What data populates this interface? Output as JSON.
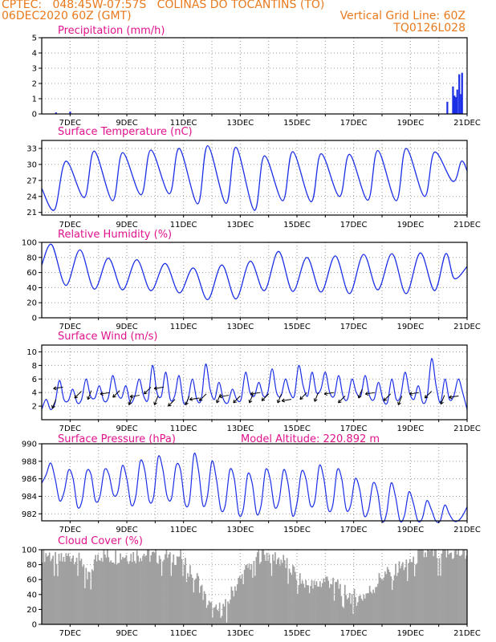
{
  "header": {
    "line1": "CPTEC:   048:45W-07:57S   COLINAS DO TOCANTINS (TO)",
    "line2_left": "06DEC2020 60Z (GMT)",
    "line2_right": "Vertical Grid Line: 60Z",
    "line3_right": "TQ0126L028"
  },
  "colors": {
    "header": "#e87a1e",
    "title": "#e0138c",
    "line": "#1a2ee6",
    "cloud": "#a0a0a0"
  },
  "x_ticks": [
    "7DEC",
    "9DEC",
    "11DEC",
    "13DEC",
    "15DEC",
    "17DEC",
    "19DEC",
    "21DEC"
  ],
  "model_altitude": "Model Altitude: 220.892  m",
  "chart_data": [
    {
      "type": "bar",
      "title": "Precipitation (mm/h)",
      "ylim": [
        0,
        5
      ],
      "yticks": [
        "0",
        "1",
        "2",
        "3",
        "4",
        "5"
      ],
      "x_range_days": [
        0,
        15
      ],
      "points": [
        [
          0.5,
          0.1
        ],
        [
          1.0,
          0.15
        ],
        [
          14.3,
          0.8
        ],
        [
          14.5,
          1.8
        ],
        [
          14.55,
          1.2
        ],
        [
          14.6,
          1.1
        ],
        [
          14.65,
          1.6
        ],
        [
          14.72,
          2.6
        ],
        [
          14.78,
          1.3
        ],
        [
          14.82,
          2.7
        ]
      ]
    },
    {
      "type": "line",
      "title": "Surface Temperature (nC)",
      "ylim": [
        20.5,
        34.5
      ],
      "yticks": [
        "21",
        "24",
        "27",
        "30",
        "33"
      ],
      "x_range_days": [
        0,
        15
      ],
      "minima": [
        [
          0.45,
          21.5
        ],
        [
          1.5,
          23.8
        ],
        [
          2.5,
          23.2
        ],
        [
          3.5,
          24.3
        ],
        [
          4.5,
          24.5
        ],
        [
          5.5,
          22.6
        ],
        [
          6.5,
          22.7
        ],
        [
          7.5,
          21.4
        ],
        [
          8.5,
          23.2
        ],
        [
          9.5,
          23.0
        ],
        [
          10.5,
          24.0
        ],
        [
          11.5,
          23.3
        ],
        [
          12.5,
          23.2
        ],
        [
          13.5,
          24.0
        ],
        [
          14.5,
          26.8
        ]
      ],
      "maxima": [
        [
          0.85,
          30.6
        ],
        [
          1.85,
          32.5
        ],
        [
          2.85,
          32.2
        ],
        [
          3.85,
          32.7
        ],
        [
          4.85,
          33.0
        ],
        [
          5.85,
          33.5
        ],
        [
          6.85,
          33.2
        ],
        [
          7.85,
          31.6
        ],
        [
          8.85,
          32.4
        ],
        [
          9.85,
          32.0
        ],
        [
          10.85,
          31.9
        ],
        [
          11.85,
          32.6
        ],
        [
          12.85,
          33.0
        ],
        [
          13.85,
          32.3
        ],
        [
          14.8,
          30.6
        ]
      ],
      "end": [
        15.0,
        28.8
      ]
    },
    {
      "type": "line",
      "title": "Relative Humidity (%)",
      "ylim": [
        0,
        100
      ],
      "yticks": [
        "0",
        "20",
        "40",
        "60",
        "80",
        "100"
      ],
      "x_range_days": [
        0,
        15
      ],
      "maxima": [
        [
          0.35,
          97
        ],
        [
          1.35,
          90
        ],
        [
          2.35,
          79
        ],
        [
          3.35,
          77
        ],
        [
          4.35,
          72
        ],
        [
          5.35,
          66
        ],
        [
          6.35,
          70
        ],
        [
          7.35,
          75
        ],
        [
          8.35,
          88
        ],
        [
          9.35,
          80
        ],
        [
          10.35,
          82
        ],
        [
          11.35,
          84
        ],
        [
          12.35,
          85
        ],
        [
          13.35,
          86
        ],
        [
          14.25,
          85
        ]
      ],
      "minima": [
        [
          0.85,
          43
        ],
        [
          1.85,
          38
        ],
        [
          2.85,
          37
        ],
        [
          3.85,
          36
        ],
        [
          4.85,
          33
        ],
        [
          5.85,
          24
        ],
        [
          6.85,
          25
        ],
        [
          7.85,
          36
        ],
        [
          8.85,
          35
        ],
        [
          9.85,
          34
        ],
        [
          10.85,
          32
        ],
        [
          11.85,
          37
        ],
        [
          12.85,
          32
        ],
        [
          13.85,
          36
        ],
        [
          14.55,
          52
        ]
      ],
      "end": [
        15.0,
        68
      ]
    },
    {
      "type": "line",
      "title": "Surface Wind (m/s)",
      "ylim": [
        0,
        11
      ],
      "yticks": [
        "2",
        "4",
        "6",
        "8",
        "10"
      ],
      "x_range_days": [
        0,
        15
      ],
      "values": [
        1.5,
        3.0,
        1.5,
        2.5,
        5.8,
        3.0,
        2.8,
        4.5,
        2.5,
        3.0,
        6.0,
        3.5,
        3.2,
        5.0,
        2.8,
        3.2,
        6.5,
        4.0,
        3.2,
        5.0,
        2.5,
        3.5,
        6.0,
        3.5,
        3.0,
        8.0,
        4.0,
        3.5,
        7.0,
        3.0,
        3.5,
        6.5,
        2.5,
        3.0,
        6.0,
        3.0,
        3.0,
        8.2,
        4.5,
        3.0,
        5.5,
        3.0,
        2.5,
        4.5,
        3.0,
        3.0,
        7.0,
        4.0,
        3.5,
        5.5,
        3.5,
        4.0,
        7.5,
        4.0,
        3.5,
        6.0,
        4.0,
        3.5,
        8.0,
        5.0,
        3.5,
        7.0,
        4.0,
        4.5,
        7.0,
        4.0,
        3.5,
        6.5,
        3.5,
        3.0,
        6.0,
        4.0,
        3.5,
        6.5,
        3.5,
        3.0,
        5.5,
        3.0,
        2.5,
        6.0,
        3.0,
        3.5,
        7.0,
        4.0,
        3.0,
        5.0,
        2.5,
        3.5,
        9.0,
        5.0,
        2.5,
        6.0,
        3.0,
        3.5,
        6.0,
        4.0,
        1.5
      ],
      "arrows": [
        [
          0.5,
          3.0
        ],
        [
          0.75,
          4.8
        ],
        [
          1.4,
          4.2
        ],
        [
          1.75,
          4.3
        ],
        [
          2.4,
          4.0
        ],
        [
          2.75,
          4.3
        ],
        [
          3.2,
          3.5
        ],
        [
          3.45,
          3.6
        ],
        [
          3.85,
          4.8
        ],
        [
          4.1,
          3.5
        ],
        [
          4.3,
          4.8
        ],
        [
          4.7,
          3.0
        ],
        [
          5.2,
          3.5
        ],
        [
          5.55,
          3.2
        ],
        [
          5.8,
          3.8
        ],
        [
          6.3,
          3.8
        ],
        [
          6.6,
          3.6
        ],
        [
          7.0,
          3.5
        ],
        [
          7.45,
          3.8
        ],
        [
          7.7,
          4.0
        ],
        [
          8.0,
          3.8
        ],
        [
          8.45,
          3.8
        ],
        [
          8.8,
          3.0
        ],
        [
          9.35,
          4.0
        ],
        [
          9.75,
          4.0
        ],
        [
          10.3,
          4.0
        ],
        [
          10.7,
          3.5
        ],
        [
          11.3,
          4.5
        ],
        [
          11.75,
          4.0
        ],
        [
          12.3,
          3.8
        ],
        [
          12.7,
          3.5
        ],
        [
          13.3,
          4.0
        ],
        [
          13.75,
          4.2
        ],
        [
          14.2,
          3.6
        ],
        [
          14.7,
          3.5
        ]
      ]
    },
    {
      "type": "line",
      "title": "Surface Pressure (hPa)",
      "ylim": [
        981.2,
        990
      ],
      "yticks": [
        "982",
        "984",
        "986",
        "988",
        "990"
      ],
      "x_range_days": [
        0,
        15
      ],
      "values": [
        985.5,
        986.5,
        987.8,
        986.0,
        983.5,
        984.5,
        987.0,
        986.0,
        982.8,
        983.5,
        986.8,
        986.5,
        983.5,
        984.0,
        987.0,
        986.5,
        984.2,
        984.5,
        987.5,
        986.0,
        983.0,
        984.0,
        988.0,
        987.0,
        983.5,
        984.0,
        988.5,
        987.2,
        984.0,
        983.8,
        987.5,
        987.0,
        983.2,
        983.5,
        988.8,
        987.0,
        983.0,
        984.0,
        988.0,
        986.0,
        982.5,
        983.0,
        987.0,
        986.0,
        982.0,
        982.5,
        986.5,
        985.5,
        982.0,
        983.0,
        987.0,
        986.0,
        982.8,
        983.5,
        987.0,
        985.5,
        981.8,
        983.2,
        986.8,
        986.0,
        983.0,
        983.5,
        987.5,
        986.0,
        982.5,
        983.0,
        987.0,
        986.0,
        982.5,
        983.0,
        986.0,
        984.8,
        981.8,
        982.5,
        985.5,
        984.5,
        981.2,
        982.0,
        985.5,
        984.0,
        981.2,
        981.8,
        984.5,
        983.2,
        981.2,
        981.5,
        983.5,
        982.5,
        981.2,
        981.2,
        983.0,
        982.0,
        981.2,
        981.2,
        981.8,
        982.8
      ]
    },
    {
      "type": "bar",
      "title": "Cloud Cover (%)",
      "ylim": [
        0,
        100
      ],
      "yticks": [
        "0",
        "20",
        "40",
        "60",
        "80",
        "100"
      ],
      "x_range_days": [
        0,
        15
      ],
      "profile": [
        [
          0.0,
          95
        ],
        [
          0.3,
          93
        ],
        [
          0.7,
          85
        ],
        [
          1.0,
          93
        ],
        [
          1.4,
          90
        ],
        [
          1.6,
          60
        ],
        [
          2.0,
          95
        ],
        [
          2.4,
          90
        ],
        [
          2.8,
          93
        ],
        [
          3.2,
          92
        ],
        [
          3.6,
          95
        ],
        [
          4.0,
          90
        ],
        [
          4.3,
          95
        ],
        [
          4.6,
          90
        ],
        [
          4.9,
          92
        ],
        [
          5.2,
          75
        ],
        [
          5.5,
          60
        ],
        [
          5.8,
          30
        ],
        [
          6.1,
          15
        ],
        [
          6.5,
          25
        ],
        [
          6.8,
          50
        ],
        [
          7.1,
          65
        ],
        [
          7.5,
          90
        ],
        [
          7.8,
          95
        ],
        [
          8.2,
          90
        ],
        [
          8.5,
          85
        ],
        [
          8.9,
          70
        ],
        [
          9.2,
          55
        ],
        [
          9.6,
          50
        ],
        [
          10.0,
          60
        ],
        [
          10.4,
          55
        ],
        [
          10.8,
          40
        ],
        [
          11.2,
          35
        ],
        [
          11.6,
          45
        ],
        [
          12.0,
          65
        ],
        [
          12.4,
          70
        ],
        [
          12.8,
          80
        ],
        [
          13.2,
          90
        ],
        [
          13.6,
          95
        ],
        [
          14.0,
          93
        ],
        [
          14.4,
          95
        ],
        [
          15.0,
          95
        ]
      ]
    }
  ]
}
